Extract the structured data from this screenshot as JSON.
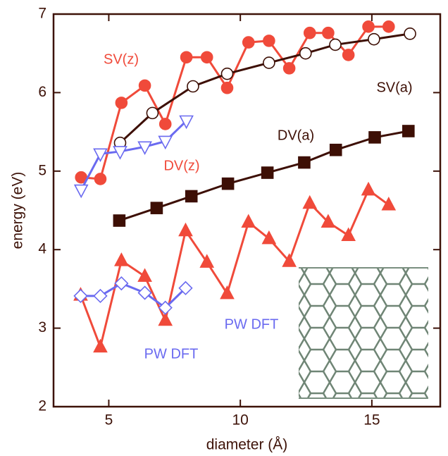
{
  "chart_data": {
    "type": "line",
    "xlabel": "diameter (Å)",
    "ylabel": "energy (eV)",
    "xlim": [
      2.9,
      17.6
    ],
    "ylim": [
      2,
      7
    ],
    "xticks": [
      5,
      10,
      15
    ],
    "yticks": [
      2,
      3,
      4,
      5,
      6,
      7
    ],
    "grid": false,
    "axis_color": "#3d1208",
    "series": [
      {
        "name": "SV(z)",
        "color": "#f04a3a",
        "marker": "circle",
        "filled": true,
        "x": [
          3.95,
          4.68,
          5.48,
          6.37,
          7.15,
          7.95,
          8.73,
          9.5,
          10.31,
          11.09,
          11.86,
          12.64,
          13.34,
          14.11,
          14.87,
          15.64
        ],
        "values": [
          4.92,
          4.9,
          5.87,
          6.09,
          5.6,
          6.45,
          6.45,
          6.06,
          6.64,
          6.66,
          6.31,
          6.76,
          6.76,
          6.48,
          6.84,
          6.84
        ]
      },
      {
        "name": "SV(a)",
        "color": "#3d0f05",
        "marker": "circle",
        "filled": false,
        "x": [
          5.43,
          6.66,
          8.2,
          9.5,
          11.09,
          12.48,
          13.61,
          15.08,
          16.45
        ],
        "values": [
          5.36,
          5.74,
          6.08,
          6.24,
          6.38,
          6.5,
          6.61,
          6.68,
          6.75
        ]
      },
      {
        "name": "DV(a)",
        "color": "#3d0f05",
        "marker": "square",
        "filled": true,
        "x": [
          5.4,
          6.82,
          8.14,
          9.53,
          11.03,
          12.43,
          13.63,
          15.11,
          16.39
        ],
        "values": [
          4.37,
          4.53,
          4.68,
          4.84,
          4.98,
          5.11,
          5.27,
          5.43,
          5.51
        ]
      },
      {
        "name": "DV(z)",
        "color": "#f04a3a",
        "marker": "triangle",
        "filled": true,
        "x": [
          3.93,
          4.68,
          5.48,
          6.37,
          7.15,
          7.92,
          8.73,
          9.5,
          10.31,
          11.09,
          11.86,
          12.64,
          13.34,
          14.11,
          14.87,
          15.64
        ],
        "values": [
          3.42,
          2.76,
          3.86,
          3.66,
          3.1,
          4.24,
          3.84,
          3.44,
          4.35,
          4.14,
          3.85,
          4.59,
          4.35,
          4.18,
          4.76,
          4.57
        ]
      },
      {
        "name": "PW DFT",
        "color": "#6a6af0",
        "marker": "triangle-down",
        "filled": false,
        "x": [
          3.95,
          4.68,
          5.43,
          6.37,
          7.15,
          7.95
        ],
        "values": [
          4.76,
          5.22,
          5.25,
          5.31,
          5.38,
          5.64
        ]
      },
      {
        "name": "PW DFT",
        "color": "#6a6af0",
        "marker": "diamond",
        "filled": false,
        "x": [
          3.93,
          4.68,
          5.48,
          6.37,
          7.15,
          7.92
        ],
        "values": [
          3.41,
          3.41,
          3.57,
          3.45,
          3.26,
          3.51
        ]
      }
    ]
  }
}
